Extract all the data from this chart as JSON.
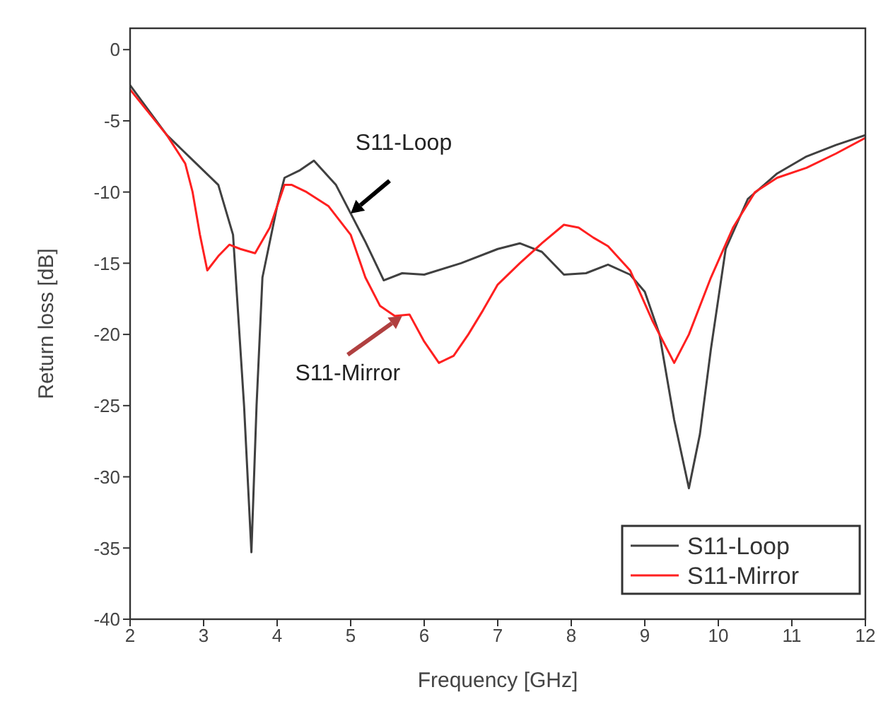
{
  "chart_data": {
    "type": "line",
    "xlabel": "Frequency [GHz]",
    "ylabel": "Return loss [dB]",
    "xlim": [
      2,
      12
    ],
    "xticks": [
      2,
      3,
      4,
      5,
      6,
      7,
      8,
      9,
      10,
      11,
      12
    ],
    "ylim": [
      -40,
      1.5
    ],
    "yticks": [
      -40,
      -35,
      -30,
      -25,
      -20,
      -15,
      -10,
      -5,
      0
    ],
    "grid": false,
    "legend": "bottom right",
    "marker": "none",
    "line_style": "solid",
    "annotations": [
      {
        "text": "S11-Loop",
        "x": 5,
        "y": -11.5
      },
      {
        "text": "S11-Mirror",
        "x": 5.7,
        "y": -18.7
      }
    ],
    "series": [
      {
        "name": "S11-Loop",
        "color": "#404040",
        "x": [
          2,
          2.5,
          2.9,
          3.2,
          3.4,
          3.55,
          3.65,
          3.72,
          3.8,
          4.0,
          4.1,
          4.3,
          4.5,
          4.8,
          5.0,
          5.2,
          5.45,
          5.7,
          6.0,
          6.5,
          7.0,
          7.3,
          7.6,
          7.9,
          8.2,
          8.5,
          8.8,
          9.0,
          9.2,
          9.4,
          9.6,
          9.75,
          9.9,
          10.1,
          10.4,
          10.8,
          11.2,
          11.6,
          12
        ],
        "values": [
          -2.5,
          -6,
          -8,
          -9.5,
          -13,
          -25,
          -35.3,
          -25,
          -16,
          -11,
          -9,
          -8.5,
          -7.8,
          -9.5,
          -11.5,
          -13.5,
          -16.2,
          -15.7,
          -15.8,
          -15,
          -14,
          -13.6,
          -14.2,
          -15.8,
          -15.7,
          -15.1,
          -15.8,
          -17,
          -20,
          -26,
          -30.8,
          -27,
          -21,
          -14,
          -10.5,
          -8.7,
          -7.5,
          -6.7,
          -6
        ]
      },
      {
        "name": "S11-Mirror",
        "color": "#ff2020",
        "x": [
          2,
          2.5,
          2.75,
          2.85,
          2.95,
          3.05,
          3.2,
          3.35,
          3.5,
          3.7,
          3.9,
          4.1,
          4.2,
          4.4,
          4.7,
          5.0,
          5.2,
          5.4,
          5.6,
          5.8,
          6.0,
          6.2,
          6.4,
          6.6,
          6.8,
          7.0,
          7.3,
          7.6,
          7.9,
          8.1,
          8.3,
          8.5,
          8.8,
          9.1,
          9.4,
          9.6,
          9.9,
          10.2,
          10.5,
          10.8,
          11.2,
          11.6,
          12
        ],
        "values": [
          -2.8,
          -6,
          -8,
          -10,
          -13,
          -15.5,
          -14.5,
          -13.7,
          -14,
          -14.3,
          -12.5,
          -9.5,
          -9.5,
          -10,
          -11,
          -13,
          -16,
          -18,
          -18.7,
          -18.6,
          -20.5,
          -22,
          -21.5,
          -20,
          -18.3,
          -16.5,
          -15,
          -13.6,
          -12.3,
          -12.5,
          -13.2,
          -13.8,
          -15.5,
          -19,
          -22,
          -20,
          -16,
          -12.5,
          -10,
          -9,
          -8.3,
          -7.3,
          -6.2
        ]
      }
    ]
  }
}
